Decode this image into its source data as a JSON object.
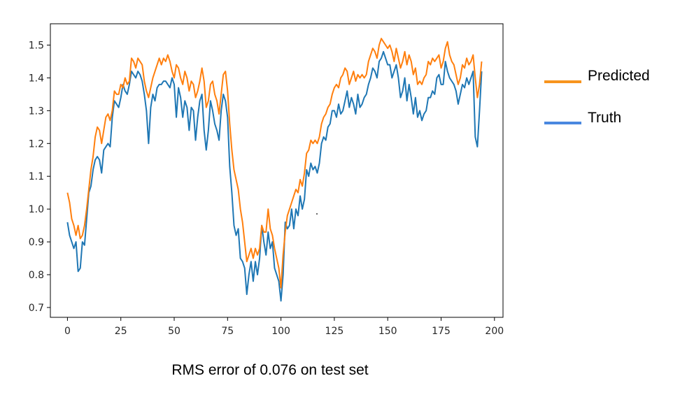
{
  "chart_data": {
    "type": "line",
    "caption": "RMS error of 0.076 on test set",
    "xlim": [
      -8,
      204
    ],
    "ylim": [
      0.67,
      1.565
    ],
    "grid": false,
    "legend_placement": "right, outside plot area",
    "x_ticks": [
      0,
      25,
      50,
      75,
      100,
      125,
      150,
      175,
      200
    ],
    "y_ticks": [
      0.7,
      0.8,
      0.9,
      1.0,
      1.1,
      1.2,
      1.3,
      1.4,
      1.5
    ],
    "series": [
      {
        "name": "Truth",
        "color": "#1f77b4",
        "legend_color": "#4a88e0",
        "y": [
          0.96,
          0.92,
          0.9,
          0.88,
          0.9,
          0.81,
          0.82,
          0.9,
          0.89,
          0.97,
          1.05,
          1.07,
          1.12,
          1.15,
          1.16,
          1.15,
          1.11,
          1.18,
          1.19,
          1.2,
          1.19,
          1.28,
          1.33,
          1.32,
          1.31,
          1.34,
          1.38,
          1.36,
          1.35,
          1.38,
          1.42,
          1.41,
          1.4,
          1.42,
          1.41,
          1.39,
          1.35,
          1.3,
          1.2,
          1.31,
          1.35,
          1.33,
          1.37,
          1.38,
          1.38,
          1.39,
          1.39,
          1.38,
          1.37,
          1.4,
          1.38,
          1.28,
          1.37,
          1.34,
          1.28,
          1.33,
          1.31,
          1.24,
          1.31,
          1.3,
          1.21,
          1.28,
          1.33,
          1.35,
          1.24,
          1.18,
          1.24,
          1.33,
          1.3,
          1.26,
          1.24,
          1.21,
          1.3,
          1.35,
          1.33,
          1.28,
          1.13,
          1.05,
          0.95,
          0.92,
          0.94,
          0.85,
          0.84,
          0.82,
          0.74,
          0.8,
          0.84,
          0.78,
          0.84,
          0.8,
          0.85,
          0.95,
          0.9,
          0.86,
          0.93,
          0.88,
          0.9,
          0.82,
          0.8,
          0.78,
          0.72,
          0.8,
          0.96,
          0.94,
          0.95,
          1.0,
          0.94,
          1.0,
          0.98,
          1.04,
          1.0,
          1.03,
          1.12,
          1.1,
          1.14,
          1.12,
          1.13,
          1.11,
          1.14,
          1.2,
          1.22,
          1.21,
          1.25,
          1.26,
          1.3,
          1.3,
          1.28,
          1.32,
          1.29,
          1.3,
          1.33,
          1.36,
          1.31,
          1.34,
          1.32,
          1.29,
          1.35,
          1.31,
          1.32,
          1.34,
          1.35,
          1.38,
          1.4,
          1.43,
          1.42,
          1.4,
          1.45,
          1.46,
          1.48,
          1.46,
          1.44,
          1.44,
          1.4,
          1.42,
          1.44,
          1.4,
          1.34,
          1.36,
          1.4,
          1.33,
          1.38,
          1.34,
          1.29,
          1.34,
          1.28,
          1.3,
          1.27,
          1.29,
          1.3,
          1.34,
          1.34,
          1.36,
          1.35,
          1.4,
          1.41,
          1.38,
          1.38,
          1.45,
          1.42,
          1.4,
          1.39,
          1.38,
          1.36,
          1.32,
          1.35,
          1.38,
          1.37,
          1.4,
          1.38,
          1.4,
          1.42,
          1.22,
          1.19,
          1.3,
          1.42
        ]
      },
      {
        "name": "Predicted",
        "color": "#ff7f0e",
        "legend_color": "#f7941d",
        "y": [
          1.05,
          1.02,
          0.97,
          0.95,
          0.92,
          0.95,
          0.91,
          0.92,
          0.95,
          1.0,
          1.06,
          1.12,
          1.16,
          1.22,
          1.25,
          1.24,
          1.2,
          1.24,
          1.28,
          1.29,
          1.27,
          1.3,
          1.36,
          1.35,
          1.35,
          1.38,
          1.37,
          1.4,
          1.38,
          1.39,
          1.46,
          1.45,
          1.43,
          1.46,
          1.45,
          1.44,
          1.39,
          1.36,
          1.34,
          1.37,
          1.4,
          1.42,
          1.44,
          1.46,
          1.44,
          1.46,
          1.45,
          1.47,
          1.45,
          1.42,
          1.4,
          1.44,
          1.43,
          1.4,
          1.38,
          1.42,
          1.4,
          1.36,
          1.39,
          1.38,
          1.34,
          1.36,
          1.39,
          1.43,
          1.39,
          1.31,
          1.33,
          1.38,
          1.39,
          1.35,
          1.33,
          1.29,
          1.35,
          1.41,
          1.42,
          1.36,
          1.26,
          1.18,
          1.12,
          1.09,
          1.06,
          1.0,
          0.96,
          0.9,
          0.84,
          0.86,
          0.88,
          0.85,
          0.88,
          0.86,
          0.88,
          0.95,
          0.93,
          0.93,
          1.0,
          0.94,
          0.92,
          0.88,
          0.85,
          0.82,
          0.76,
          0.86,
          0.93,
          0.98,
          1.0,
          1.02,
          1.04,
          1.06,
          1.05,
          1.09,
          1.07,
          1.11,
          1.17,
          1.18,
          1.21,
          1.2,
          1.21,
          1.2,
          1.22,
          1.26,
          1.28,
          1.29,
          1.31,
          1.32,
          1.35,
          1.37,
          1.38,
          1.37,
          1.4,
          1.41,
          1.43,
          1.42,
          1.38,
          1.4,
          1.42,
          1.39,
          1.41,
          1.4,
          1.41,
          1.4,
          1.41,
          1.45,
          1.47,
          1.49,
          1.48,
          1.46,
          1.5,
          1.52,
          1.51,
          1.5,
          1.49,
          1.5,
          1.48,
          1.45,
          1.49,
          1.46,
          1.43,
          1.45,
          1.48,
          1.44,
          1.47,
          1.45,
          1.41,
          1.43,
          1.38,
          1.39,
          1.38,
          1.4,
          1.41,
          1.45,
          1.44,
          1.46,
          1.45,
          1.46,
          1.47,
          1.43,
          1.45,
          1.49,
          1.51,
          1.47,
          1.45,
          1.44,
          1.41,
          1.38,
          1.4,
          1.44,
          1.43,
          1.46,
          1.44,
          1.45,
          1.47,
          1.4,
          1.34,
          1.38,
          1.45
        ]
      }
    ]
  }
}
